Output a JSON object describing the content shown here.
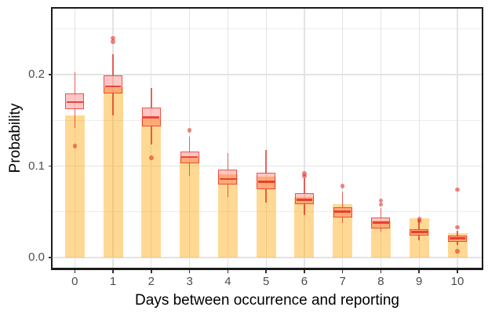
{
  "chart_data": {
    "type": "bar+boxplot",
    "xlabel": "Days between occurrence and reporting",
    "ylabel": "Probability",
    "categories": [
      "0",
      "1",
      "2",
      "3",
      "4",
      "5",
      "6",
      "7",
      "8",
      "9",
      "10"
    ],
    "y_ticks": [
      {
        "value": 0.0,
        "label": "0.0"
      },
      {
        "value": 0.1,
        "label": "0.1"
      },
      {
        "value": 0.2,
        "label": "0.2"
      }
    ],
    "grid": {
      "major": [
        0.0,
        0.1,
        0.2
      ],
      "minor": [
        0.05,
        0.15,
        0.25
      ],
      "vertical_on_each_category": true
    },
    "ylim": [
      -0.011,
      0.272
    ],
    "legend": "none",
    "bars": {
      "name": "probability-bars",
      "values": [
        0.155,
        0.186,
        0.152,
        0.109,
        0.091,
        0.088,
        0.066,
        0.058,
        0.04,
        0.043,
        0.027
      ]
    },
    "boxplots": [
      {
        "day": "0",
        "whisker_low": 0.142,
        "q1": 0.162,
        "median": 0.17,
        "q3": 0.179,
        "whisker_high": 0.203,
        "outliers": [
          0.122
        ]
      },
      {
        "day": "1",
        "whisker_low": 0.155,
        "q1": 0.179,
        "median": 0.187,
        "q3": 0.199,
        "whisker_high": 0.222,
        "outliers": [
          0.24,
          0.236
        ]
      },
      {
        "day": "2",
        "whisker_low": 0.124,
        "q1": 0.143,
        "median": 0.153,
        "q3": 0.164,
        "whisker_high": 0.185,
        "outliers": [
          0.109
        ]
      },
      {
        "day": "3",
        "whisker_low": 0.089,
        "q1": 0.103,
        "median": 0.11,
        "q3": 0.116,
        "whisker_high": 0.132,
        "outliers": [
          0.139
        ]
      },
      {
        "day": "4",
        "whisker_low": 0.066,
        "q1": 0.08,
        "median": 0.086,
        "q3": 0.096,
        "whisker_high": 0.114,
        "outliers": []
      },
      {
        "day": "5",
        "whisker_low": 0.06,
        "q1": 0.075,
        "median": 0.083,
        "q3": 0.093,
        "whisker_high": 0.118,
        "outliers": []
      },
      {
        "day": "6",
        "whisker_low": 0.046,
        "q1": 0.058,
        "median": 0.063,
        "q3": 0.07,
        "whisker_high": 0.087,
        "outliers": [
          0.092,
          0.089
        ]
      },
      {
        "day": "7",
        "whisker_low": 0.038,
        "q1": 0.044,
        "median": 0.05,
        "q3": 0.055,
        "whisker_high": 0.072,
        "outliers": [
          0.078
        ]
      },
      {
        "day": "8",
        "whisker_low": 0.028,
        "q1": 0.032,
        "median": 0.038,
        "q3": 0.044,
        "whisker_high": 0.054,
        "outliers": [
          0.062,
          0.058
        ]
      },
      {
        "day": "9",
        "whisker_low": 0.019,
        "q1": 0.024,
        "median": 0.028,
        "q3": 0.031,
        "whisker_high": 0.04,
        "outliers": [
          0.042,
          0.04
        ]
      },
      {
        "day": "10",
        "whisker_low": 0.014,
        "q1": 0.017,
        "median": 0.021,
        "q3": 0.024,
        "whisker_high": 0.029,
        "outliers": [
          0.074,
          0.033,
          0.007
        ]
      }
    ]
  },
  "style": {
    "bar_fill": "rgba(255,165,0,0.42)",
    "box_fill": "rgba(250,55,45,0.28)",
    "stroke": "rgba(228,38,28,0.70)",
    "median_stroke": "rgba(225,35,25,0.78)",
    "outlier_fill": "rgba(228,38,28,0.55)",
    "grid_major": "#e3e3e3",
    "grid_minor": "#ededed",
    "panel_border": "#1c1c1c",
    "tick_color": "#333333",
    "tick_label_color": "#4d4d4d",
    "title_color": "#000000",
    "background": "#ffffff"
  }
}
